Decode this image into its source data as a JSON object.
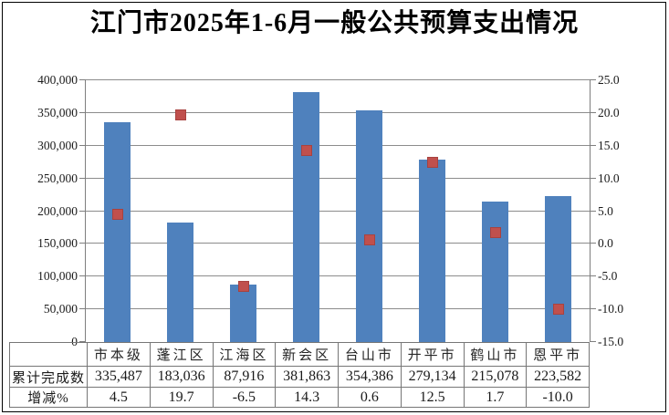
{
  "title": "江门市2025年1-6月一般公共预算支出情况",
  "chart_data": {
    "type": "bar",
    "subtype": "combo-bars-with-square-markers",
    "categories": [
      "市本级",
      "蓬江区",
      "江海区",
      "新会区",
      "台山市",
      "开平市",
      "鹤山市",
      "恩平市"
    ],
    "series": [
      {
        "name": "累计完成数",
        "chart": "bar",
        "axis": "left",
        "values": [
          335487,
          183036,
          87916,
          381863,
          354386,
          279134,
          215078,
          223582
        ],
        "display": [
          "335,487",
          "183,036",
          "87,916",
          "381,863",
          "354,386",
          "279,134",
          "215,078",
          "223,582"
        ],
        "color": "#4F81BD"
      },
      {
        "name": "增减%",
        "chart": "scatter",
        "marker": "square",
        "axis": "right",
        "values": [
          4.5,
          19.7,
          -6.5,
          14.3,
          0.6,
          12.5,
          1.7,
          -10.0
        ],
        "display": [
          "4.5",
          "19.7",
          "-6.5",
          "14.3",
          "0.6",
          "12.5",
          "1.7",
          "-10.0"
        ],
        "color": "#C0504D"
      }
    ],
    "left_axis": {
      "min": 0,
      "max": 400000,
      "step": 50000,
      "tick_labels": [
        "0",
        "50,000",
        "100,000",
        "150,000",
        "200,000",
        "250,000",
        "300,000",
        "350,000",
        "400,000"
      ]
    },
    "right_axis": {
      "min": -15,
      "max": 25,
      "step": 5,
      "tick_labels": [
        "-15.0",
        "-10.0",
        "-5.0",
        "0.0",
        "5.0",
        "10.0",
        "15.0",
        "20.0",
        "25.0"
      ]
    },
    "grid": true,
    "legend": "none",
    "colors": {
      "gridline": "#8C8C8C",
      "axis_line": "#7E7E7E",
      "table_border": "#767676",
      "text": "#1A1A1A",
      "title_text": "#000000",
      "background": "#FFFFFF",
      "frame_border": "#000000"
    }
  }
}
